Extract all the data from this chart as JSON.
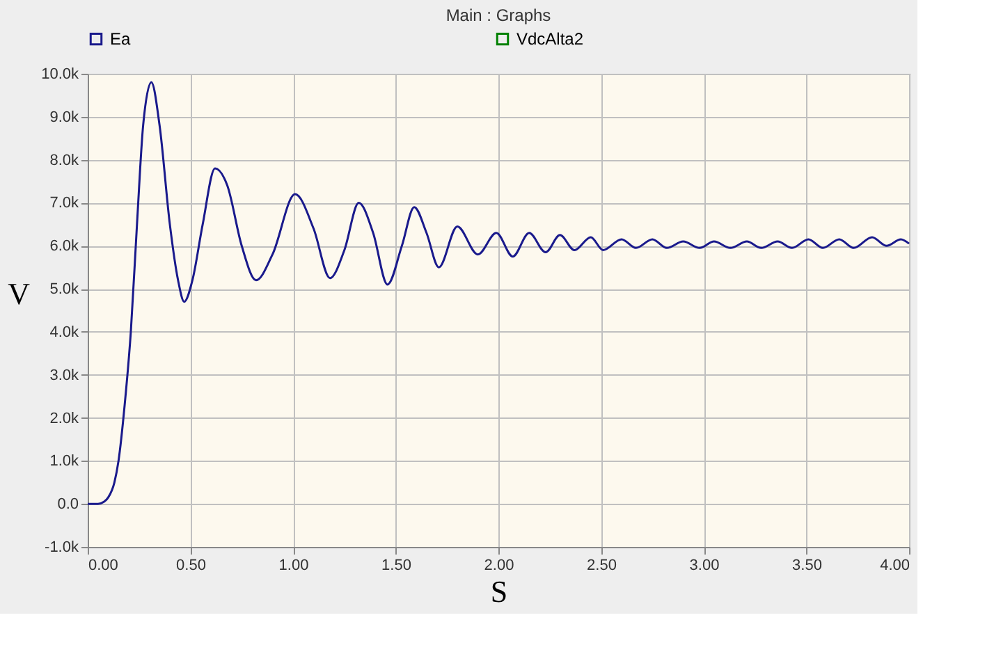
{
  "chart_data": {
    "type": "line",
    "title": "Main : Graphs",
    "xlabel": "S",
    "ylabel": "V",
    "xlim": [
      0,
      4
    ],
    "ylim": [
      -1000,
      10000
    ],
    "xticks": [
      {
        "value": 0,
        "label": "0.00"
      },
      {
        "value": 0.5,
        "label": "0.50"
      },
      {
        "value": 1,
        "label": "1.00"
      },
      {
        "value": 1.5,
        "label": "1.50"
      },
      {
        "value": 2,
        "label": "2.00"
      },
      {
        "value": 2.5,
        "label": "2.50"
      },
      {
        "value": 3,
        "label": "3.00"
      },
      {
        "value": 3.5,
        "label": "3.50"
      },
      {
        "value": 4,
        "label": "4.00"
      }
    ],
    "yticks": [
      {
        "value": -1000,
        "label": "-1.0k"
      },
      {
        "value": 0,
        "label": "0.0"
      },
      {
        "value": 1000,
        "label": "1.0k"
      },
      {
        "value": 2000,
        "label": "2.0k"
      },
      {
        "value": 3000,
        "label": "3.0k"
      },
      {
        "value": 4000,
        "label": "4.0k"
      },
      {
        "value": 5000,
        "label": "5.0k"
      },
      {
        "value": 6000,
        "label": "6.0k"
      },
      {
        "value": 7000,
        "label": "7.0k"
      },
      {
        "value": 8000,
        "label": "8.0k"
      },
      {
        "value": 9000,
        "label": "9.0k"
      },
      {
        "value": 10000,
        "label": "10.0k"
      }
    ],
    "grid": true,
    "legend": "top",
    "marker": "none",
    "line_style": "solid",
    "x": [
      0,
      0.05,
      0.08,
      0.1,
      0.13,
      0.15,
      0.18,
      0.21,
      0.24,
      0.27,
      0.31,
      0.35,
      0.4,
      0.44,
      0.47,
      0.51,
      0.56,
      0.62,
      0.68,
      0.75,
      0.82,
      0.9,
      1.01,
      1.1,
      1.18,
      1.25,
      1.32,
      1.39,
      1.46,
      1.53,
      1.59,
      1.65,
      1.71,
      1.8,
      1.9,
      1.99,
      2.07,
      2.15,
      2.23,
      2.3,
      2.37,
      2.45,
      2.51,
      2.6,
      2.67,
      2.75,
      2.82,
      2.9,
      2.98,
      3.05,
      3.13,
      3.21,
      3.28,
      3.36,
      3.43,
      3.51,
      3.58,
      3.66,
      3.73,
      3.82,
      3.89,
      3.96,
      4.0
    ],
    "series": [
      {
        "name": "Ea",
        "color": "#1a1a8c",
        "values": [
          0,
          0,
          50,
          150,
          500,
          1000,
          2300,
          4000,
          6500,
          8800,
          9800,
          8800,
          6500,
          5200,
          4700,
          5200,
          6500,
          7800,
          7400,
          6000,
          5200,
          5800,
          7200,
          6400,
          5250,
          5900,
          7000,
          6300,
          5100,
          6000,
          6900,
          6300,
          5500,
          6450,
          5800,
          6300,
          5750,
          6300,
          5850,
          6250,
          5900,
          6200,
          5900,
          6150,
          5950,
          6150,
          5950,
          6100,
          5950,
          6100,
          5950,
          6100,
          5950,
          6100,
          5950,
          6150,
          5950,
          6150,
          5950,
          6200,
          6000,
          6150,
          6050
        ]
      },
      {
        "name": "VdcAlta2",
        "color": "#008000",
        "values": [
          null,
          null,
          null,
          null,
          null,
          null,
          null,
          null,
          null,
          null,
          null,
          null,
          null,
          null,
          null,
          null,
          null,
          null,
          null,
          null,
          null,
          null,
          null,
          null,
          null,
          null,
          null,
          null,
          null,
          null,
          null,
          null,
          null,
          null,
          null,
          null,
          null,
          null,
          null,
          null,
          null,
          null,
          null,
          null,
          null,
          null,
          null,
          null,
          null,
          null,
          null,
          null,
          null,
          null,
          null,
          null,
          null,
          null,
          null,
          null,
          null,
          null,
          null
        ]
      }
    ]
  }
}
